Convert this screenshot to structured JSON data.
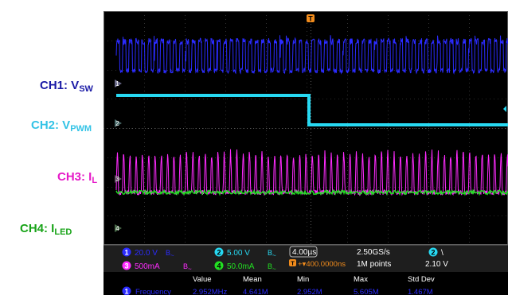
{
  "labels": {
    "ch1": {
      "main": "CH1: V",
      "sub": "SW",
      "color": "#1a1aa6"
    },
    "ch2": {
      "main": "CH2: V",
      "sub": "PWM",
      "color": "#33c3e6"
    },
    "ch3": {
      "main": "CH3: I",
      "sub": "L",
      "color": "#e619c8"
    },
    "ch4": {
      "main": "CH4: I",
      "sub": "LED",
      "color": "#17a317"
    }
  },
  "colors": {
    "ch1": "#2b2bff",
    "ch2": "#27d9f2",
    "ch3": "#ff2bff",
    "ch4": "#22e022",
    "trigger": "#f28c1c",
    "grid": "#555555",
    "readout_bg": "#1e1e1e"
  },
  "markers": {
    "ch1": "1",
    "ch2": "2",
    "ch3": "3",
    "ch4": "4",
    "trigger": "T"
  },
  "scope": {
    "ch1_scale": "20.0 V",
    "ch2_scale": "5.00 V",
    "ch3_scale": "500mA",
    "ch4_scale": "50.0mA",
    "timebase": "4.00µs",
    "trigger_pos": "+▾400.0000ns",
    "sample_rate": "2.50GS/s",
    "record_length": "1M points",
    "trigger_channel": "2",
    "trigger_slope": "\\",
    "trigger_level": "2.10 V",
    "bw_symbol": "B",
    "coupling_symbol": "~"
  },
  "measurements": {
    "headers": [
      "Value",
      "Mean",
      "Min",
      "Max",
      "Std Dev"
    ],
    "row": {
      "num": "1",
      "name": "Frequency",
      "value": "2.952MHz",
      "mean": "4.641M",
      "min": "2.952M",
      "max": "5.605M",
      "stddev": "1.467M"
    }
  }
}
